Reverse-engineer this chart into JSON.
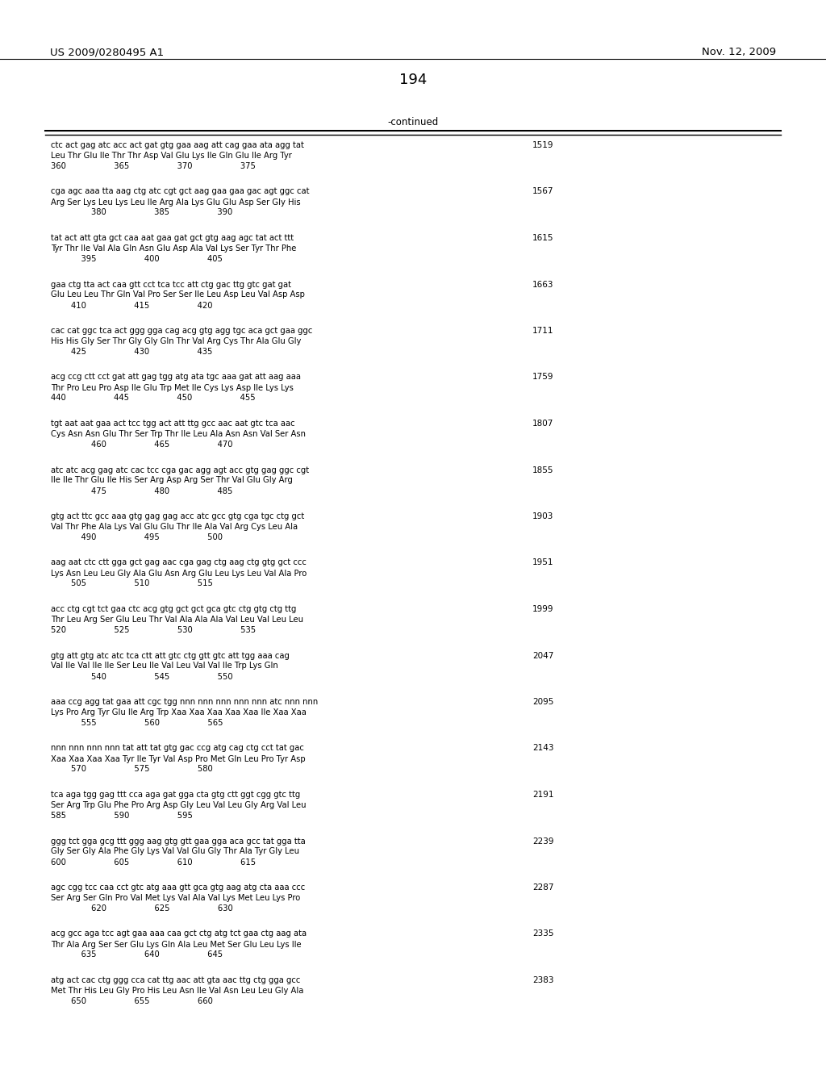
{
  "header_left": "US 2009/0280495 A1",
  "header_right": "Nov. 12, 2009",
  "page_number": "194",
  "continued_label": "-continued",
  "background_color": "#ffffff",
  "text_color": "#000000",
  "entries": [
    {
      "dna": "ctc act gag atc acc act gat gtg gaa aag att cag gaa ata agg tat",
      "aa": "Leu Thr Glu Ile Thr Thr Asp Val Glu Lys Ile Gln Glu Ile Arg Tyr",
      "nums": "360                   365                   370                   375",
      "num_right": "1519"
    },
    {
      "dna": "cga agc aaa tta aag ctg atc cgt gct aag gaa gaa gac agt ggc cat",
      "aa": "Arg Ser Lys Leu Lys Leu Ile Arg Ala Lys Glu Glu Asp Ser Gly His",
      "nums": "                380                   385                   390",
      "num_right": "1567"
    },
    {
      "dna": "tat act att gta gct caa aat gaa gat gct gtg aag agc tat act ttt",
      "aa": "Tyr Thr Ile Val Ala Gln Asn Glu Asp Ala Val Lys Ser Tyr Thr Phe",
      "nums": "            395                   400                   405",
      "num_right": "1615"
    },
    {
      "dna": "gaa ctg tta act caa gtt cct tca tcc att ctg gac ttg gtc gat gat",
      "aa": "Glu Leu Leu Thr Gln Val Pro Ser Ser Ile Leu Asp Leu Val Asp Asp",
      "nums": "        410                   415                   420",
      "num_right": "1663"
    },
    {
      "dna": "cac cat ggc tca act ggg gga cag acg gtg agg tgc aca gct gaa ggc",
      "aa": "His His Gly Ser Thr Gly Gly Gln Thr Val Arg Cys Thr Ala Glu Gly",
      "nums": "        425                   430                   435",
      "num_right": "1711"
    },
    {
      "dna": "acg ccg ctt cct gat att gag tgg atg ata tgc aaa gat att aag aaa",
      "aa": "Thr Pro Leu Pro Asp Ile Glu Trp Met Ile Cys Lys Asp Ile Lys Lys",
      "nums": "440                   445                   450                   455",
      "num_right": "1759"
    },
    {
      "dna": "tgt aat aat gaa act tcc tgg act att ttg gcc aac aat gtc tca aac",
      "aa": "Cys Asn Asn Glu Thr Ser Trp Thr Ile Leu Ala Asn Asn Val Ser Asn",
      "nums": "                460                   465                   470",
      "num_right": "1807"
    },
    {
      "dna": "atc atc acg gag atc cac tcc cga gac agg agt acc gtg gag ggc cgt",
      "aa": "Ile Ile Thr Glu Ile His Ser Arg Asp Arg Ser Thr Val Glu Gly Arg",
      "nums": "                475                   480                   485",
      "num_right": "1855"
    },
    {
      "dna": "gtg act ttc gcc aaa gtg gag gag acc atc gcc gtg cga tgc ctg gct",
      "aa": "Val Thr Phe Ala Lys Val Glu Glu Thr Ile Ala Val Arg Cys Leu Ala",
      "nums": "            490                   495                   500",
      "num_right": "1903"
    },
    {
      "dna": "aag aat ctc ctt gga gct gag aac cga gag ctg aag ctg gtg gct ccc",
      "aa": "Lys Asn Leu Leu Gly Ala Glu Asn Arg Glu Leu Lys Leu Val Ala Pro",
      "nums": "        505                   510                   515",
      "num_right": "1951"
    },
    {
      "dna": "acc ctg cgt tct gaa ctc acg gtg gct gct gca gtc ctg gtg ctg ttg",
      "aa": "Thr Leu Arg Ser Glu Leu Thr Val Ala Ala Ala Val Leu Val Leu Leu",
      "nums": "520                   525                   530                   535",
      "num_right": "1999"
    },
    {
      "dna": "gtg att gtg atc atc tca ctt att gtc ctg gtt gtc att tgg aaa cag",
      "aa": "Val Ile Val Ile Ile Ser Leu Ile Val Leu Val Val Ile Trp Lys Gln",
      "nums": "                540                   545                   550",
      "num_right": "2047"
    },
    {
      "dna": "aaa ccg agg tat gaa att cgc tgg nnn nnn nnn nnn nnn atc nnn nnn",
      "aa": "Lys Pro Arg Tyr Glu Ile Arg Trp Xaa Xaa Xaa Xaa Xaa Ile Xaa Xaa",
      "nums": "            555                   560                   565",
      "num_right": "2095"
    },
    {
      "dna": "nnn nnn nnn nnn tat att tat gtg gac ccg atg cag ctg cct tat gac",
      "aa": "Xaa Xaa Xaa Xaa Tyr Ile Tyr Val Asp Pro Met Gln Leu Pro Tyr Asp",
      "nums": "        570                   575                   580",
      "num_right": "2143"
    },
    {
      "dna": "tca aga tgg gag ttt cca aga gat gga cta gtg ctt ggt cgg gtc ttg",
      "aa": "Ser Arg Trp Glu Phe Pro Arg Asp Gly Leu Val Leu Gly Arg Val Leu",
      "nums": "585                   590                   595",
      "num_right": "2191"
    },
    {
      "dna": "ggg tct gga gcg ttt ggg aag gtg gtt gaa gga aca gcc tat gga tta",
      "aa": "Gly Ser Gly Ala Phe Gly Lys Val Val Glu Gly Thr Ala Tyr Gly Leu",
      "nums": "600                   605                   610                   615",
      "num_right": "2239"
    },
    {
      "dna": "agc cgg tcc caa cct gtc atg aaa gtt gca gtg aag atg cta aaa ccc",
      "aa": "Ser Arg Ser Gln Pro Val Met Lys Val Ala Val Lys Met Leu Lys Pro",
      "nums": "                620                   625                   630",
      "num_right": "2287"
    },
    {
      "dna": "acg gcc aga tcc agt gaa aaa caa gct ctg atg tct gaa ctg aag ata",
      "aa": "Thr Ala Arg Ser Ser Glu Lys Gln Ala Leu Met Ser Glu Leu Lys Ile",
      "nums": "            635                   640                   645",
      "num_right": "2335"
    },
    {
      "dna": "atg act cac ctg ggg cca cat ttg aac att gta aac ttg ctg gga gcc",
      "aa": "Met Thr His Leu Gly Pro His Leu Asn Ile Val Asn Leu Leu Gly Ala",
      "nums": "        650                   655                   660",
      "num_right": "2383"
    }
  ]
}
